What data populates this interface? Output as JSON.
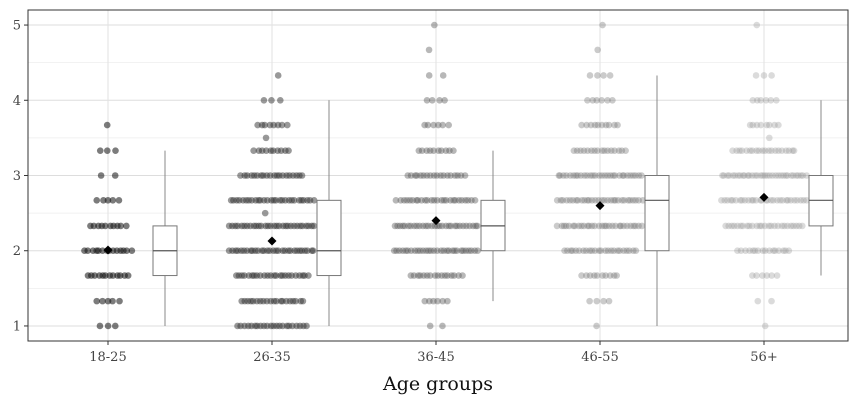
{
  "chart_data": {
    "type": "box+jitter",
    "title": "",
    "xlabel": "Age groups",
    "ylabel": "",
    "ylim": [
      0.8,
      5.2
    ],
    "y_ticks": [
      1,
      2,
      3,
      4,
      5
    ],
    "grid": true,
    "categories": [
      "18-25",
      "26-35",
      "36-45",
      "46-55",
      "56+"
    ],
    "point_colors": [
      "#111111",
      "#333333",
      "#555555",
      "#777777",
      "#999999"
    ],
    "point_alpha": [
      0.55,
      0.5,
      0.42,
      0.38,
      0.35
    ],
    "means": [
      2.01,
      2.13,
      2.4,
      2.6,
      2.71
    ],
    "boxes": [
      {
        "whisker_low": 1.0,
        "q1": 1.67,
        "median": 2.0,
        "q3": 2.33,
        "whisker_high": 3.33
      },
      {
        "whisker_low": 1.0,
        "q1": 1.67,
        "median": 2.0,
        "q3": 2.67,
        "whisker_high": 4.0
      },
      {
        "whisker_low": 1.33,
        "q1": 2.0,
        "median": 2.33,
        "q3": 2.67,
        "whisker_high": 3.33
      },
      {
        "whisker_low": 1.0,
        "q1": 2.0,
        "median": 2.67,
        "q3": 3.0,
        "whisker_high": 4.33
      },
      {
        "whisker_low": 1.67,
        "q1": 2.33,
        "median": 2.67,
        "q3": 3.0,
        "whisker_high": 4.0
      }
    ],
    "points": [
      [
        {
          "y": 1.0,
          "n": 3
        },
        {
          "y": 1.33,
          "n": 5
        },
        {
          "y": 1.67,
          "n": 12
        },
        {
          "y": 2.0,
          "n": 14
        },
        {
          "y": 2.33,
          "n": 10
        },
        {
          "y": 2.67,
          "n": 5
        },
        {
          "y": 3.0,
          "n": 2
        },
        {
          "y": 3.33,
          "n": 3
        },
        {
          "y": 3.67,
          "n": 1
        }
      ],
      [
        {
          "y": 1.0,
          "n": 22
        },
        {
          "y": 1.33,
          "n": 20
        },
        {
          "y": 1.67,
          "n": 24
        },
        {
          "y": 2.0,
          "n": 30
        },
        {
          "y": 2.33,
          "n": 30
        },
        {
          "y": 2.5,
          "n": 1
        },
        {
          "y": 2.67,
          "n": 28
        },
        {
          "y": 3.0,
          "n": 20
        },
        {
          "y": 3.33,
          "n": 10
        },
        {
          "y": 3.5,
          "n": 1
        },
        {
          "y": 3.67,
          "n": 8
        },
        {
          "y": 4.0,
          "n": 3
        },
        {
          "y": 4.33,
          "n": 1
        }
      ],
      [
        {
          "y": 1.0,
          "n": 2
        },
        {
          "y": 1.33,
          "n": 6
        },
        {
          "y": 1.67,
          "n": 16
        },
        {
          "y": 2.0,
          "n": 30
        },
        {
          "y": 2.33,
          "n": 30
        },
        {
          "y": 2.67,
          "n": 26
        },
        {
          "y": 3.0,
          "n": 18
        },
        {
          "y": 3.33,
          "n": 10
        },
        {
          "y": 3.67,
          "n": 6
        },
        {
          "y": 4.0,
          "n": 4
        },
        {
          "y": 4.33,
          "n": 2
        },
        {
          "y": 4.67,
          "n": 1
        },
        {
          "y": 5.0,
          "n": 1
        }
      ],
      [
        {
          "y": 1.0,
          "n": 1
        },
        {
          "y": 1.33,
          "n": 4
        },
        {
          "y": 1.67,
          "n": 10
        },
        {
          "y": 2.0,
          "n": 24
        },
        {
          "y": 2.33,
          "n": 30
        },
        {
          "y": 2.67,
          "n": 30
        },
        {
          "y": 3.0,
          "n": 30
        },
        {
          "y": 3.33,
          "n": 16
        },
        {
          "y": 3.67,
          "n": 10
        },
        {
          "y": 4.0,
          "n": 6
        },
        {
          "y": 4.33,
          "n": 4
        },
        {
          "y": 4.67,
          "n": 1
        },
        {
          "y": 5.0,
          "n": 1
        }
      ],
      [
        {
          "y": 1.0,
          "n": 1
        },
        {
          "y": 1.33,
          "n": 2
        },
        {
          "y": 1.67,
          "n": 6
        },
        {
          "y": 2.0,
          "n": 16
        },
        {
          "y": 2.33,
          "n": 26
        },
        {
          "y": 2.67,
          "n": 30
        },
        {
          "y": 3.0,
          "n": 34
        },
        {
          "y": 3.33,
          "n": 20
        },
        {
          "y": 3.5,
          "n": 1
        },
        {
          "y": 3.67,
          "n": 8
        },
        {
          "y": 4.0,
          "n": 6
        },
        {
          "y": 4.33,
          "n": 3
        },
        {
          "y": 5.0,
          "n": 1
        }
      ]
    ]
  }
}
